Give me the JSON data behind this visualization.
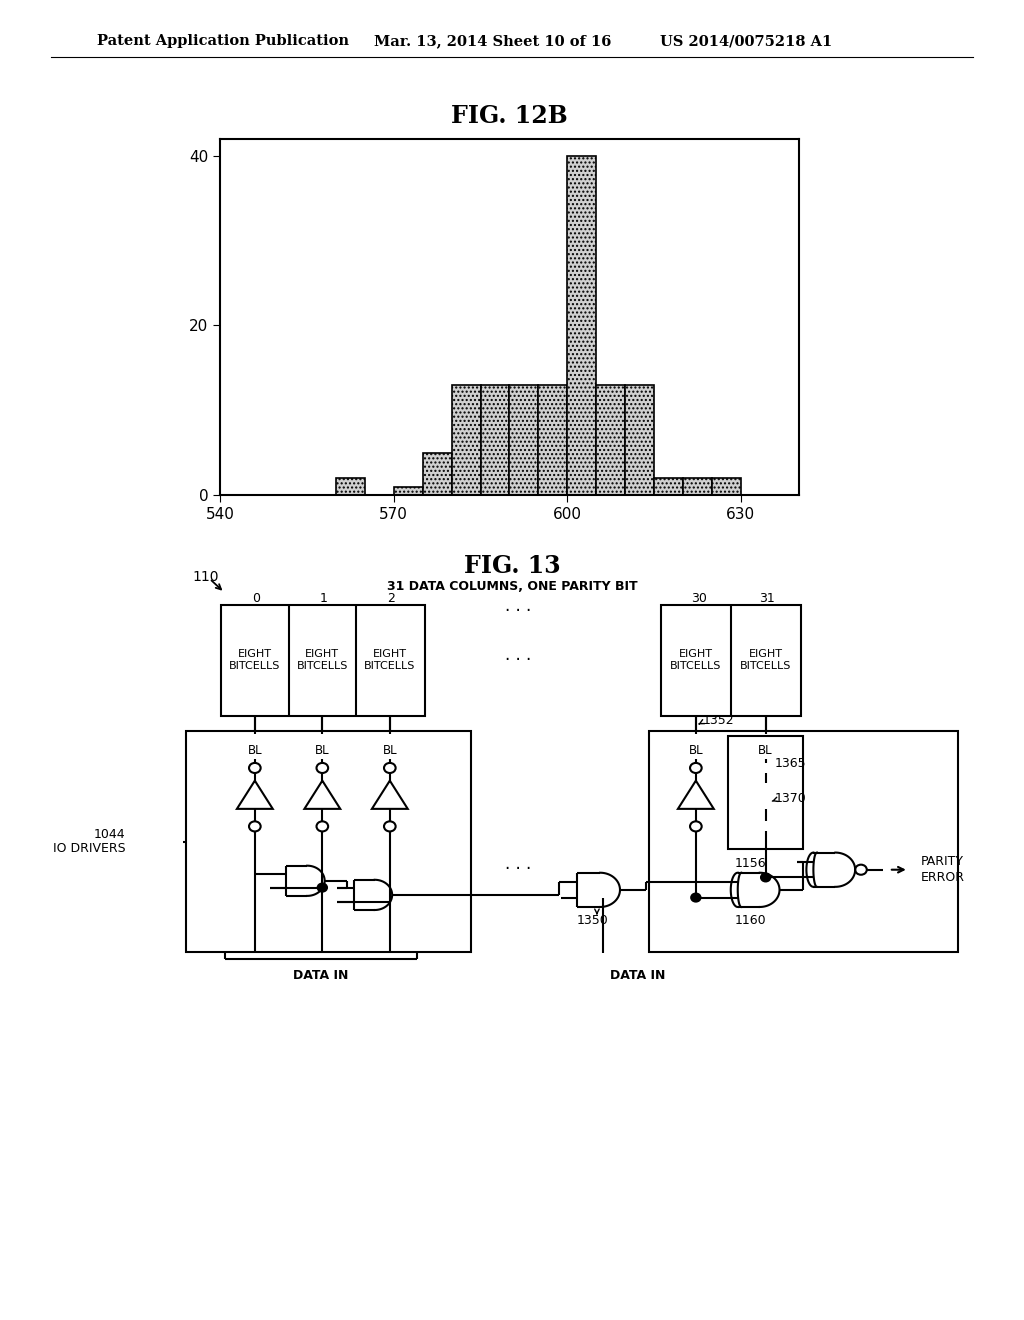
{
  "header_left": "Patent Application Publication",
  "header_mid": "Mar. 13, 2014 Sheet 10 of 16",
  "header_right": "US 2014/0075218 A1",
  "fig12b_title": "FIG. 12B",
  "hist_xlim": [
    540,
    640
  ],
  "hist_ylim": [
    0,
    42
  ],
  "hist_xticks": [
    540,
    570,
    600,
    630
  ],
  "hist_yticks": [
    0,
    20,
    40
  ],
  "hist_bin_edges": [
    555,
    560,
    565,
    570,
    575,
    580,
    585,
    590,
    595,
    600,
    605,
    610,
    615,
    620,
    625,
    630
  ],
  "hist_heights": [
    0,
    2,
    0,
    1,
    5,
    13,
    13,
    13,
    13,
    40,
    13,
    13,
    2,
    2,
    2,
    0
  ],
  "fig13_title": "FIG. 13",
  "subtitle": "31 DATA COLUMNS, ONE PARITY BIT",
  "bg_color": "#ffffff",
  "line_color": "#000000"
}
